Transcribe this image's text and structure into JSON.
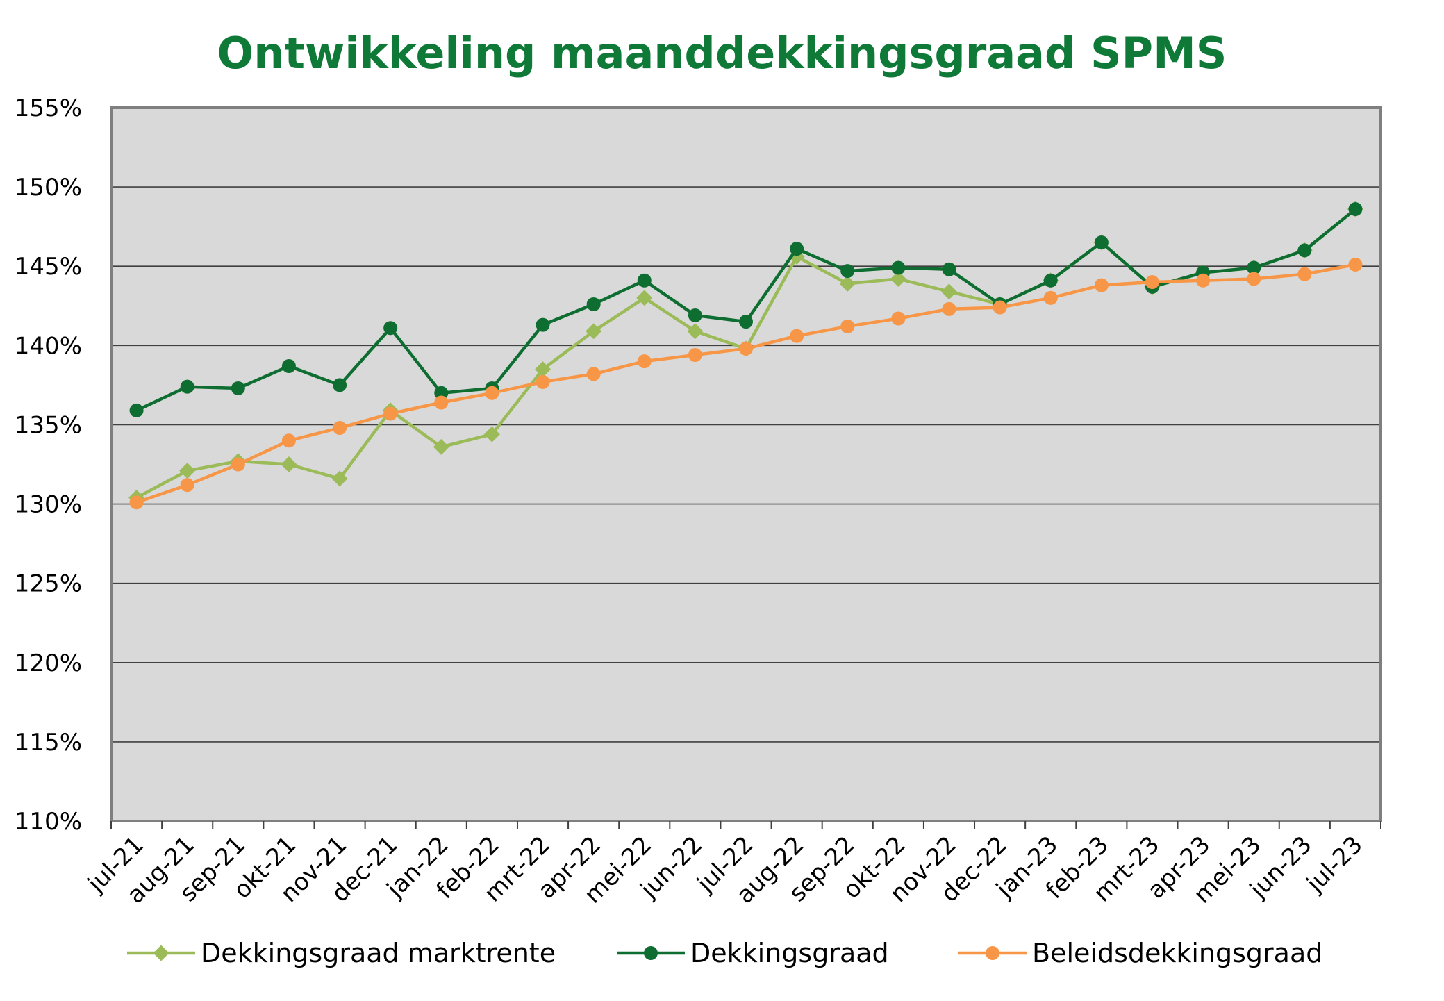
{
  "chart_data": {
    "type": "line",
    "title": "Ontwikkeling maanddekkingsgraad SPMS",
    "xlabel": "",
    "ylabel": "",
    "ylim": [
      110,
      155
    ],
    "yticks": [
      "110%",
      "115%",
      "120%",
      "125%",
      "130%",
      "135%",
      "140%",
      "145%",
      "150%",
      "155%"
    ],
    "categories": [
      "jul-21",
      "aug-21",
      "sep-21",
      "okt-21",
      "nov-21",
      "dec-21",
      "jan-22",
      "feb-22",
      "mrt-22",
      "apr-22",
      "mei-22",
      "jun-22",
      "jul-22",
      "aug-22",
      "sep-22",
      "okt-22",
      "nov-22",
      "dec-22",
      "jan-23",
      "feb-23",
      "mrt-23",
      "apr-23",
      "mei-23",
      "jun-23",
      "jul-23"
    ],
    "grid": true,
    "legend_position": "bottom",
    "plot_background": "#d9d9d9",
    "series": [
      {
        "name": "Dekkingsgraad marktrente",
        "color": "#9bbb59",
        "marker": "diamond",
        "values": [
          130.4,
          132.1,
          132.7,
          132.5,
          131.6,
          135.9,
          133.6,
          134.4,
          138.5,
          140.9,
          143.0,
          140.9,
          139.8,
          145.6,
          143.9,
          144.2,
          143.4,
          142.6,
          144.1,
          146.5,
          143.7,
          144.6,
          144.9,
          146.0,
          148.6
        ]
      },
      {
        "name": "Dekkingsgraad",
        "color": "#0e6e31",
        "marker": "circle",
        "values": [
          135.9,
          137.4,
          137.3,
          138.7,
          137.5,
          141.1,
          137.0,
          137.3,
          141.3,
          142.6,
          144.1,
          141.9,
          141.5,
          146.1,
          144.7,
          144.9,
          144.8,
          142.6,
          144.1,
          146.5,
          143.7,
          144.6,
          144.9,
          146.0,
          148.6
        ]
      },
      {
        "name": "Beleidsdekkingsgraad",
        "color": "#f79646",
        "marker": "circle",
        "values": [
          130.1,
          131.2,
          132.5,
          134.0,
          134.8,
          135.7,
          136.4,
          137.0,
          137.7,
          138.2,
          139.0,
          139.4,
          139.8,
          140.6,
          141.2,
          141.7,
          142.3,
          142.4,
          143.0,
          143.8,
          144.0,
          144.1,
          144.2,
          144.5,
          145.1
        ]
      }
    ]
  }
}
